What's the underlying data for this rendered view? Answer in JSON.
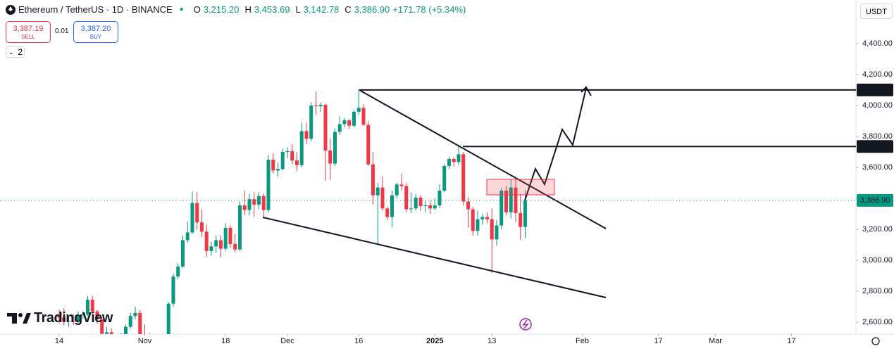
{
  "header": {
    "symbol": "Ethereum / TetherUS · 1D · BINANCE",
    "o_key": "O",
    "o": "3,215.20",
    "h_key": "H",
    "h": "3,453.69",
    "l_key": "L",
    "l": "3,142.78",
    "c_key": "C",
    "c": "3,386.90",
    "change": "+171.78 (+5.34%)",
    "sell_price": "3,387.19",
    "sell": "SELL",
    "spread": "0.01",
    "buy_price": "3,387.20",
    "buy": "BUY",
    "indicators": "2",
    "currency": "USDT",
    "brand": "TradingView"
  },
  "chart_data": {
    "type": "candlestick",
    "x": [
      0,
      1,
      2,
      3,
      4,
      5,
      6,
      7,
      8,
      9,
      10,
      11,
      12,
      13,
      14,
      15,
      16,
      17,
      18,
      19,
      20,
      21,
      22,
      23,
      24,
      25,
      26,
      27,
      28,
      29,
      30,
      31,
      32,
      33,
      34,
      35,
      36,
      37,
      38,
      39,
      40,
      41,
      42,
      43,
      44,
      45,
      46,
      47,
      48,
      49,
      50,
      51,
      52,
      53,
      54,
      55,
      56,
      57,
      58,
      59,
      60,
      61,
      62,
      63,
      64,
      65,
      66,
      67,
      68,
      69,
      70,
      71,
      72,
      73,
      74,
      75,
      76,
      77,
      78,
      79,
      80,
      81,
      82,
      83,
      84,
      85,
      86,
      87,
      88,
      89,
      90,
      91,
      92,
      93,
      94,
      95,
      96,
      97,
      98
    ],
    "open": [
      2640,
      2630,
      2605,
      2610,
      2605,
      2645,
      2650,
      2745,
      2670,
      2620,
      2525,
      2535,
      2440,
      2480,
      2510,
      2570,
      2640,
      2660,
      2520,
      2515,
      2490,
      2460,
      2400,
      2420,
      2720,
      2895,
      2960,
      3130,
      3180,
      3370,
      3245,
      3185,
      3060,
      3090,
      3130,
      3075,
      3210,
      3105,
      3070,
      3355,
      3325,
      3395,
      3360,
      3415,
      3325,
      3650,
      3580,
      3590,
      3700,
      3705,
      3645,
      3615,
      3835,
      3785,
      4000,
      3995,
      4005,
      3710,
      3625,
      3830,
      3880,
      3905,
      3870,
      3960,
      3985,
      3875,
      3620,
      3420,
      3470,
      3335,
      3280,
      3420,
      3490,
      3480,
      3330,
      3335,
      3405,
      3350,
      3355,
      3335,
      3355,
      3450,
      3610,
      3655,
      3635,
      3685,
      3380,
      3330,
      3190,
      3265,
      3280,
      3265,
      3135,
      3225,
      3450,
      3310,
      3470,
      3305,
      3215.2
    ],
    "high": [
      2680,
      2690,
      2640,
      2650,
      2670,
      2670,
      2770,
      2770,
      2680,
      2630,
      2570,
      2560,
      2490,
      2530,
      2585,
      2660,
      2700,
      2680,
      2585,
      2530,
      2510,
      2480,
      2490,
      2730,
      2915,
      2980,
      3160,
      3250,
      3445,
      3440,
      3330,
      3230,
      3120,
      3160,
      3160,
      3240,
      3225,
      3170,
      3380,
      3450,
      3430,
      3440,
      3440,
      3430,
      3680,
      3690,
      3630,
      3720,
      3730,
      3750,
      3700,
      3890,
      3890,
      4020,
      4090,
      4020,
      4010,
      3785,
      3850,
      3930,
      3920,
      3910,
      3970,
      4107,
      4010,
      3900,
      3700,
      3500,
      3545,
      3345,
      3450,
      3500,
      3560,
      3500,
      3440,
      3430,
      3420,
      3385,
      3385,
      3400,
      3490,
      3620,
      3670,
      3665,
      3745,
      3700,
      3410,
      3345,
      3320,
      3300,
      3310,
      3335,
      3260,
      3470,
      3480,
      3525,
      3520,
      3430,
      3453.69
    ],
    "low": [
      2590,
      2580,
      2570,
      2580,
      2590,
      2620,
      2640,
      2650,
      2590,
      2440,
      2500,
      2400,
      2430,
      2470,
      2500,
      2560,
      2620,
      2500,
      2470,
      2480,
      2430,
      2360,
      2355,
      2410,
      2700,
      2880,
      2950,
      3110,
      3170,
      3200,
      3150,
      3020,
      3030,
      3050,
      3020,
      3060,
      3080,
      3050,
      3060,
      3290,
      3290,
      3280,
      3330,
      3280,
      3310,
      3560,
      3540,
      3580,
      3660,
      3620,
      3575,
      3600,
      3750,
      3770,
      3940,
      3960,
      3515,
      3520,
      3610,
      3810,
      3860,
      3850,
      3860,
      3940,
      3870,
      3610,
      3360,
      3100,
      3320,
      3260,
      3215,
      3400,
      3450,
      3310,
      3305,
      3320,
      3320,
      3310,
      3300,
      3325,
      3340,
      3440,
      3590,
      3605,
      3615,
      3355,
      3210,
      3160,
      3160,
      3230,
      3240,
      2920,
      3095,
      3200,
      3290,
      3270,
      3250,
      3130,
      3142.78
    ],
    "close": [
      2630,
      2605,
      2610,
      2605,
      2645,
      2650,
      2745,
      2670,
      2620,
      2525,
      2535,
      2440,
      2480,
      2510,
      2570,
      2640,
      2660,
      2520,
      2515,
      2490,
      2460,
      2400,
      2420,
      2720,
      2895,
      2960,
      3130,
      3180,
      3370,
      3245,
      3185,
      3060,
      3090,
      3130,
      3075,
      3210,
      3105,
      3070,
      3355,
      3325,
      3395,
      3360,
      3415,
      3325,
      3650,
      3580,
      3590,
      3700,
      3705,
      3645,
      3615,
      3835,
      3785,
      4000,
      3995,
      4005,
      3710,
      3625,
      3830,
      3880,
      3905,
      3870,
      3960,
      3985,
      3875,
      3620,
      3420,
      3470,
      3335,
      3280,
      3420,
      3490,
      3480,
      3330,
      3335,
      3405,
      3350,
      3355,
      3335,
      3355,
      3450,
      3610,
      3655,
      3635,
      3685,
      3380,
      3330,
      3190,
      3265,
      3280,
      3265,
      3135,
      3225,
      3450,
      3310,
      3470,
      3305,
      3215.2,
      3386.9
    ],
    "up_color": "#089981",
    "down_color": "#f23645",
    "xlim": [
      -12.44,
      167.56
    ],
    "xticks": [
      {
        "value": 0,
        "label": "14"
      },
      {
        "value": 18,
        "label": "Nov"
      },
      {
        "value": 35,
        "label": "18"
      },
      {
        "value": 48,
        "label": "Dec"
      },
      {
        "value": 63,
        "label": "16"
      },
      {
        "value": 79,
        "label": "2025"
      },
      {
        "value": 91,
        "label": "13"
      },
      {
        "value": 110,
        "label": "Feb"
      },
      {
        "value": 126,
        "label": "17"
      },
      {
        "value": 138,
        "label": "Mar"
      },
      {
        "value": 154,
        "label": "17"
      }
    ],
    "ylim": [
      2523,
      4682
    ],
    "yticks": [
      {
        "value": 2600,
        "label": "2,600.00"
      },
      {
        "value": 2800,
        "label": "2,800.00"
      },
      {
        "value": 3000,
        "label": "3,000.00"
      },
      {
        "value": 3200,
        "label": "3,200.00"
      },
      {
        "value": 3400,
        "label": "3,400.00"
      },
      {
        "value": 3600,
        "label": "3,600.00"
      },
      {
        "value": 3800,
        "label": "3,800.00"
      },
      {
        "value": 4000,
        "label": "4,000.00"
      },
      {
        "value": 4200,
        "label": "4,200.00"
      },
      {
        "value": 4400,
        "label": "4,400.00"
      }
    ],
    "price_lines": [
      {
        "value": 4101,
        "label": "4,101.00"
      },
      {
        "value": 3735.67,
        "label": "3,735.67"
      }
    ],
    "last_price": {
      "value": 3386.9,
      "label": "3,386.90"
    }
  }
}
